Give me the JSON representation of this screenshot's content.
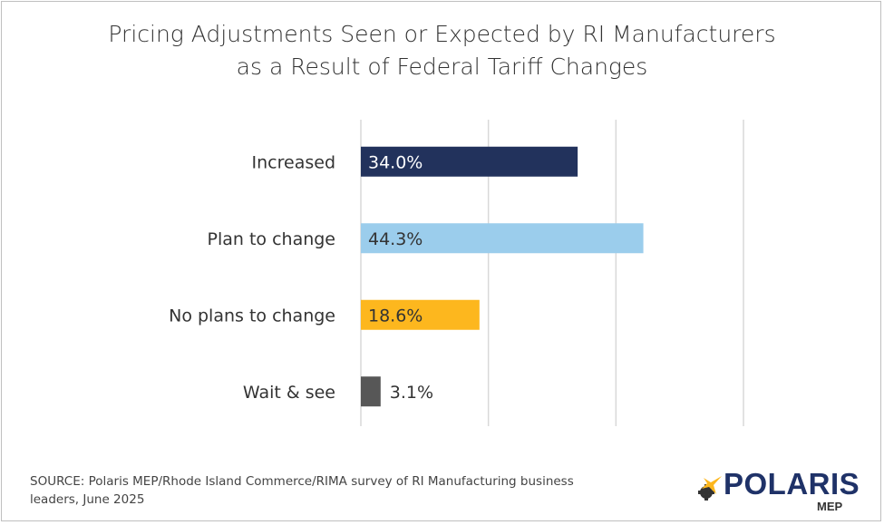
{
  "chart_data": {
    "type": "bar",
    "orientation": "horizontal",
    "title": [
      "Pricing Adjustments Seen or Expected by RI Manufacturers",
      "as a Result of Federal Tariff Changes"
    ],
    "categories": [
      "Increased",
      "Plan to change",
      "No plans to change",
      "Wait & see"
    ],
    "values": [
      34.0,
      44.3,
      18.6,
      3.1
    ],
    "data_labels": [
      "34.0%",
      "44.3%",
      "18.6%",
      "3.1%"
    ],
    "colors": [
      "#22325c",
      "#9bcdec",
      "#fdb71e",
      "#575757"
    ],
    "label_colors": [
      "#ffffff",
      "#333333",
      "#333333",
      "#333333"
    ],
    "xlim": [
      0,
      60
    ],
    "gridlines": [
      0,
      20,
      40,
      60
    ],
    "grid": true,
    "xlabel": "",
    "ylabel": ""
  },
  "source": "SOURCE: Polaris MEP/Rhode Island Commerce/RIMA survey of RI Manufacturing business leaders, June 2025",
  "logo": {
    "word": "POLARIS",
    "sub": "MEP"
  }
}
